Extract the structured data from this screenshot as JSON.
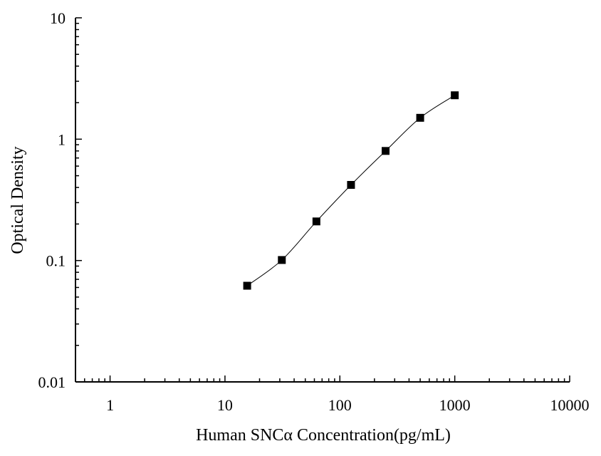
{
  "chart_data": {
    "type": "scatter",
    "xlabel": "Human SNCα Concentration(pg/mL)",
    "ylabel": "Optical Density",
    "xscale": "log",
    "yscale": "log",
    "xlim": [
      0.5,
      10000
    ],
    "ylim": [
      0.01,
      10
    ],
    "xticks": [
      1,
      10,
      100,
      1000,
      10000
    ],
    "xtick_labels": [
      "1",
      "10",
      "100",
      "1000",
      "10000"
    ],
    "yticks": [
      0.01,
      0.1,
      1,
      10
    ],
    "ytick_labels": [
      "0.01",
      "0.1",
      "1",
      "10"
    ],
    "grid": false,
    "series": [
      {
        "marker": "square",
        "line": "smooth-fit",
        "color": "#000000",
        "x": [
          15.6,
          31.25,
          62.5,
          125,
          250,
          500,
          1000
        ],
        "y": [
          0.062,
          0.101,
          0.21,
          0.42,
          0.8,
          1.5,
          2.3
        ]
      }
    ]
  }
}
